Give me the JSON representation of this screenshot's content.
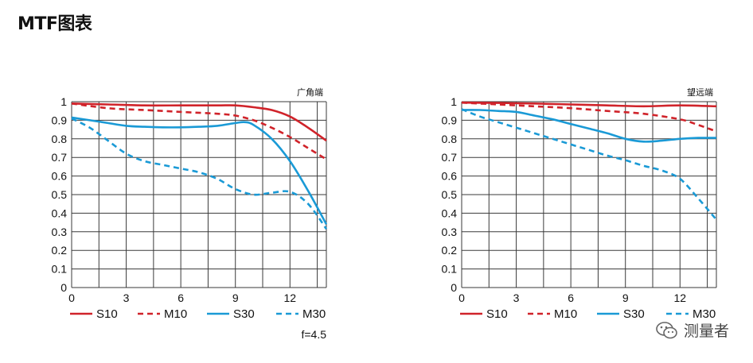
{
  "page": {
    "title": "MTF图表"
  },
  "colors": {
    "red": "#d0232a",
    "blue": "#1a9ad6",
    "grid": "#3a3a3a"
  },
  "watermark": {
    "text": "测量者",
    "icon": "wechat-icon"
  },
  "chart_data": [
    {
      "type": "line",
      "corner_label": "广角端",
      "note": "f=4.5",
      "xlim": [
        0,
        14
      ],
      "ylim": [
        0,
        1
      ],
      "x_ticks": [
        "0",
        "3",
        "6",
        "9",
        "12"
      ],
      "y_ticks": [
        "0",
        "0.1",
        "0.2",
        "0.3",
        "0.4",
        "0.5",
        "0.6",
        "0.7",
        "0.8",
        "0.9",
        "1"
      ],
      "grid": true,
      "legend": "bottom",
      "series": [
        {
          "name": "S10",
          "color": "red",
          "style": "solid",
          "x": [
            0,
            2,
            4,
            6,
            8,
            9,
            10,
            11,
            12,
            13,
            14
          ],
          "y": [
            0.99,
            0.985,
            0.98,
            0.98,
            0.98,
            0.98,
            0.97,
            0.955,
            0.92,
            0.86,
            0.79
          ]
        },
        {
          "name": "M10",
          "color": "red",
          "style": "dashed",
          "x": [
            0,
            2,
            4,
            6,
            8,
            9,
            10,
            11,
            12,
            13,
            14
          ],
          "y": [
            0.99,
            0.965,
            0.955,
            0.945,
            0.935,
            0.925,
            0.9,
            0.86,
            0.81,
            0.75,
            0.69
          ]
        },
        {
          "name": "S30",
          "color": "blue",
          "style": "solid",
          "x": [
            0,
            1,
            2,
            3,
            4,
            5,
            6,
            7,
            8,
            9,
            9.5,
            10,
            11,
            12,
            13,
            14
          ],
          "y": [
            0.915,
            0.9,
            0.885,
            0.87,
            0.865,
            0.862,
            0.862,
            0.865,
            0.87,
            0.885,
            0.89,
            0.875,
            0.8,
            0.68,
            0.52,
            0.34
          ]
        },
        {
          "name": "M30",
          "color": "blue",
          "style": "dashed",
          "x": [
            0,
            1,
            2,
            3,
            4,
            5,
            6,
            7,
            8,
            9,
            10,
            11,
            12,
            13,
            14
          ],
          "y": [
            0.91,
            0.86,
            0.79,
            0.72,
            0.68,
            0.66,
            0.64,
            0.62,
            0.585,
            0.53,
            0.5,
            0.51,
            0.515,
            0.45,
            0.315
          ]
        }
      ]
    },
    {
      "type": "line",
      "corner_label": "望远端",
      "note": "",
      "xlim": [
        0,
        14
      ],
      "ylim": [
        0,
        1
      ],
      "x_ticks": [
        "0",
        "3",
        "6",
        "9",
        "12"
      ],
      "y_ticks": [
        "0",
        "0.1",
        "0.2",
        "0.3",
        "0.4",
        "0.5",
        "0.6",
        "0.7",
        "0.8",
        "0.9",
        "1"
      ],
      "grid": true,
      "legend": "bottom",
      "series": [
        {
          "name": "S10",
          "color": "red",
          "style": "solid",
          "x": [
            0,
            2,
            4,
            6,
            8,
            10,
            12,
            14
          ],
          "y": [
            0.995,
            0.993,
            0.99,
            0.985,
            0.98,
            0.975,
            0.98,
            0.975
          ]
        },
        {
          "name": "M10",
          "color": "red",
          "style": "dashed",
          "x": [
            0,
            2,
            4,
            6,
            8,
            10,
            12,
            13,
            14
          ],
          "y": [
            0.995,
            0.985,
            0.975,
            0.965,
            0.95,
            0.935,
            0.905,
            0.875,
            0.84
          ]
        },
        {
          "name": "S30",
          "color": "blue",
          "style": "solid",
          "x": [
            0,
            1,
            2,
            3,
            4,
            5,
            6,
            7,
            8,
            9,
            10,
            11,
            12,
            13,
            14
          ],
          "y": [
            0.955,
            0.955,
            0.95,
            0.945,
            0.925,
            0.905,
            0.88,
            0.855,
            0.83,
            0.8,
            0.785,
            0.79,
            0.8,
            0.805,
            0.805
          ]
        },
        {
          "name": "M30",
          "color": "blue",
          "style": "dashed",
          "x": [
            0,
            1,
            2,
            3,
            4,
            5,
            6,
            7,
            8,
            9,
            10,
            11,
            12,
            13,
            14
          ],
          "y": [
            0.96,
            0.92,
            0.89,
            0.86,
            0.83,
            0.8,
            0.77,
            0.74,
            0.71,
            0.685,
            0.655,
            0.63,
            0.585,
            0.48,
            0.365
          ]
        }
      ]
    }
  ]
}
